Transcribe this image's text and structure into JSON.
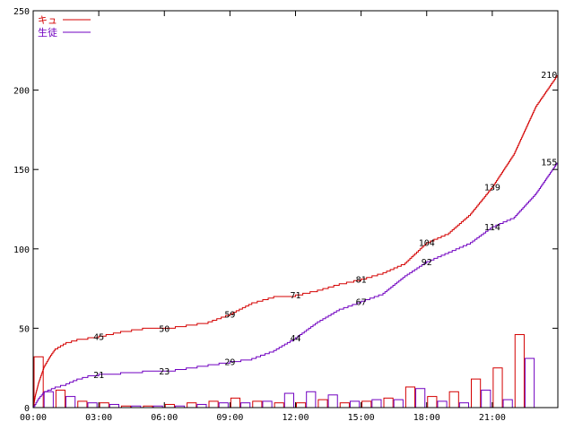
{
  "chart_data": {
    "type": "line",
    "title": "",
    "xlabel": "",
    "ylabel": "",
    "xlim": [
      0,
      24
    ],
    "ylim": [
      0,
      250
    ],
    "x_ticks": [
      "00:00",
      "03:00",
      "06:00",
      "09:00",
      "12:00",
      "15:00",
      "18:00",
      "21:00"
    ],
    "y_ticks": [
      "0",
      "50",
      "100",
      "150",
      "200",
      "250"
    ],
    "legend_position": "top-left",
    "grid": false,
    "series": [
      {
        "name": "キュ",
        "color": "#d40000",
        "cumulative": [
          [
            0.0,
            0
          ],
          [
            0.1,
            8
          ],
          [
            0.25,
            16
          ],
          [
            0.5,
            26
          ],
          [
            0.75,
            32
          ],
          [
            1.0,
            37
          ],
          [
            1.5,
            41
          ],
          [
            2.0,
            43
          ],
          [
            2.5,
            44
          ],
          [
            3.0,
            45
          ],
          [
            4.0,
            48
          ],
          [
            5.0,
            50
          ],
          [
            6.0,
            50
          ],
          [
            7.0,
            52
          ],
          [
            8.0,
            54
          ],
          [
            9.0,
            59
          ],
          [
            10.0,
            66
          ],
          [
            11.0,
            70
          ],
          [
            12.0,
            71
          ],
          [
            13.0,
            74
          ],
          [
            14.0,
            78
          ],
          [
            15.0,
            81
          ],
          [
            16.0,
            85
          ],
          [
            17.0,
            91
          ],
          [
            18.0,
            104
          ],
          [
            19.0,
            110
          ],
          [
            20.0,
            122
          ],
          [
            21.0,
            139
          ],
          [
            22.0,
            160
          ],
          [
            23.0,
            190
          ],
          [
            23.5,
            200
          ],
          [
            24.0,
            210
          ]
        ],
        "labels": [
          {
            "x": 3,
            "value": "45"
          },
          {
            "x": 6,
            "value": "50"
          },
          {
            "x": 9,
            "value": "59"
          },
          {
            "x": 12,
            "value": "71"
          },
          {
            "x": 15,
            "value": "81"
          },
          {
            "x": 18,
            "value": "104"
          },
          {
            "x": 21,
            "value": "139"
          },
          {
            "x": 23.6,
            "value": "210"
          }
        ],
        "hourly_bars": [
          32,
          11,
          4,
          3,
          1,
          1,
          2,
          3,
          4,
          6,
          4,
          3,
          3,
          5,
          3,
          4,
          6,
          13,
          7,
          10,
          18,
          25,
          46,
          0
        ]
      },
      {
        "name": "生徒",
        "color": "#7000c0",
        "cumulative": [
          [
            0.0,
            0
          ],
          [
            0.25,
            6
          ],
          [
            0.5,
            10
          ],
          [
            1.0,
            13
          ],
          [
            1.5,
            15
          ],
          [
            2.0,
            18
          ],
          [
            2.5,
            20
          ],
          [
            3.0,
            21
          ],
          [
            4.0,
            22
          ],
          [
            5.0,
            23
          ],
          [
            6.0,
            23
          ],
          [
            7.0,
            25
          ],
          [
            8.0,
            27
          ],
          [
            9.0,
            29
          ],
          [
            10.0,
            31
          ],
          [
            11.0,
            36
          ],
          [
            12.0,
            44
          ],
          [
            13.0,
            54
          ],
          [
            14.0,
            62
          ],
          [
            15.0,
            67
          ],
          [
            16.0,
            72
          ],
          [
            17.0,
            83
          ],
          [
            18.0,
            92
          ],
          [
            19.0,
            98
          ],
          [
            20.0,
            104
          ],
          [
            21.0,
            114
          ],
          [
            22.0,
            120
          ],
          [
            23.0,
            135
          ],
          [
            23.5,
            145
          ],
          [
            24.0,
            155
          ]
        ],
        "labels": [
          {
            "x": 3,
            "value": "21"
          },
          {
            "x": 6,
            "value": "23"
          },
          {
            "x": 9,
            "value": "29"
          },
          {
            "x": 12,
            "value": "44"
          },
          {
            "x": 15,
            "value": "67"
          },
          {
            "x": 18,
            "value": "92"
          },
          {
            "x": 21,
            "value": "114"
          },
          {
            "x": 23.6,
            "value": "155"
          }
        ],
        "hourly_bars": [
          10,
          7,
          3,
          2,
          1,
          1,
          1,
          2,
          3,
          3,
          4,
          9,
          10,
          8,
          4,
          5,
          5,
          12,
          4,
          3,
          11,
          5,
          31,
          0
        ]
      }
    ]
  }
}
